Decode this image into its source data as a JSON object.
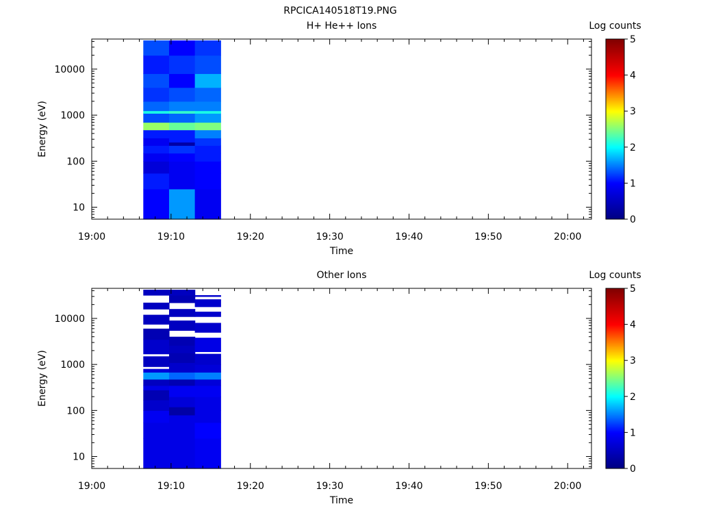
{
  "figure_title": "RPCICA140518T19.PNG",
  "colorbar_ticks": [
    "0",
    "1",
    "2",
    "3",
    "4",
    "5"
  ],
  "colors": {
    "axes": "#000000",
    "background": "#ffffff",
    "colormap": [
      "#000080",
      "#0000ff",
      "#00ffff",
      "#ffff00",
      "#ff0000",
      "#800000"
    ]
  },
  "chart_data": [
    {
      "type": "heatmap",
      "title": "H+ He++ Ions",
      "xlabel": "Time",
      "ylabel": "Energy (eV)",
      "colorbar_label": "Log counts",
      "xticks": [
        "19:00",
        "19:10",
        "19:20",
        "19:30",
        "19:40",
        "19:50",
        "20:00"
      ],
      "yticks": [
        "10",
        "100",
        "1000",
        "10000"
      ],
      "yscale": "log",
      "ylim_eV": [
        5.5,
        45000
      ],
      "xlim": [
        "19:00",
        "20:03"
      ],
      "zlim": [
        0,
        5
      ],
      "grid": false,
      "columns": [
        {
          "start": "19:06:30",
          "end": "19:09:45",
          "bins": [
            {
              "emin": 5.5,
              "emax": 25,
              "value": 1.0
            },
            {
              "emin": 25,
              "emax": 55,
              "value": 1.1
            },
            {
              "emin": 55,
              "emax": 100,
              "value": 0.7
            },
            {
              "emin": 100,
              "emax": 150,
              "value": 0.9
            },
            {
              "emin": 150,
              "emax": 220,
              "value": 1.1
            },
            {
              "emin": 220,
              "emax": 320,
              "value": 0.9
            },
            {
              "emin": 320,
              "emax": 480,
              "value": 1.1
            },
            {
              "emin": 480,
              "emax": 700,
              "value": 2.6
            },
            {
              "emin": 700,
              "emax": 1100,
              "value": 1.3
            },
            {
              "emin": 1100,
              "emax": 1250,
              "value": 2.1
            },
            {
              "emin": 1250,
              "emax": 2000,
              "value": 1.4
            },
            {
              "emin": 2000,
              "emax": 4000,
              "value": 1.2
            },
            {
              "emin": 4000,
              "emax": 8000,
              "value": 1.3
            },
            {
              "emin": 8000,
              "emax": 20000,
              "value": 1.1
            },
            {
              "emin": 20000,
              "emax": 42000,
              "value": 1.3
            }
          ]
        },
        {
          "start": "19:09:45",
          "end": "19:13:00",
          "bins": [
            {
              "emin": 5.5,
              "emax": 25,
              "value": 1.6
            },
            {
              "emin": 25,
              "emax": 55,
              "value": 0.9
            },
            {
              "emin": 55,
              "emax": 100,
              "value": 0.9
            },
            {
              "emin": 100,
              "emax": 150,
              "value": 1.0
            },
            {
              "emin": 150,
              "emax": 220,
              "value": 1.2
            },
            {
              "emin": 220,
              "emax": 260,
              "value": 0.3
            },
            {
              "emin": 260,
              "emax": 480,
              "value": 1.1
            },
            {
              "emin": 480,
              "emax": 700,
              "value": 2.4
            },
            {
              "emin": 700,
              "emax": 1100,
              "value": 1.4
            },
            {
              "emin": 1100,
              "emax": 1250,
              "value": 2.2
            },
            {
              "emin": 1250,
              "emax": 2000,
              "value": 1.5
            },
            {
              "emin": 2000,
              "emax": 4000,
              "value": 1.3
            },
            {
              "emin": 4000,
              "emax": 8000,
              "value": 1.0
            },
            {
              "emin": 8000,
              "emax": 20000,
              "value": 1.2
            },
            {
              "emin": 20000,
              "emax": 42000,
              "value": 1.0
            }
          ]
        },
        {
          "start": "19:13:00",
          "end": "19:16:15",
          "bins": [
            {
              "emin": 5.5,
              "emax": 25,
              "value": 0.9
            },
            {
              "emin": 25,
              "emax": 55,
              "value": 1.0
            },
            {
              "emin": 55,
              "emax": 100,
              "value": 1.0
            },
            {
              "emin": 100,
              "emax": 150,
              "value": 1.1
            },
            {
              "emin": 150,
              "emax": 220,
              "value": 1.1
            },
            {
              "emin": 220,
              "emax": 320,
              "value": 1.2
            },
            {
              "emin": 320,
              "emax": 480,
              "value": 1.5
            },
            {
              "emin": 480,
              "emax": 700,
              "value": 2.5
            },
            {
              "emin": 700,
              "emax": 1100,
              "value": 1.6
            },
            {
              "emin": 1100,
              "emax": 1250,
              "value": 2.1
            },
            {
              "emin": 1250,
              "emax": 2000,
              "value": 1.5
            },
            {
              "emin": 2000,
              "emax": 4000,
              "value": 1.4
            },
            {
              "emin": 4000,
              "emax": 8000,
              "value": 1.7
            },
            {
              "emin": 8000,
              "emax": 20000,
              "value": 1.3
            },
            {
              "emin": 20000,
              "emax": 42000,
              "value": 1.2
            }
          ]
        }
      ]
    },
    {
      "type": "heatmap",
      "title": "Other Ions",
      "xlabel": "Time",
      "ylabel": "Energy (eV)",
      "colorbar_label": "Log counts",
      "xticks": [
        "19:00",
        "19:10",
        "19:20",
        "19:30",
        "19:40",
        "19:50",
        "20:00"
      ],
      "yticks": [
        "10",
        "100",
        "1000",
        "10000"
      ],
      "yscale": "log",
      "ylim_eV": [
        5.5,
        45000
      ],
      "xlim": [
        "19:00",
        "20:03"
      ],
      "zlim": [
        0,
        5
      ],
      "grid": false,
      "columns": [
        {
          "start": "19:06:30",
          "end": "19:09:45",
          "bins": [
            {
              "emin": 5.5,
              "emax": 25,
              "value": 0.8
            },
            {
              "emin": 25,
              "emax": 55,
              "value": 0.8
            },
            {
              "emin": 55,
              "emax": 100,
              "value": 0.9
            },
            {
              "emin": 100,
              "emax": 170,
              "value": 0.6
            },
            {
              "emin": 170,
              "emax": 280,
              "value": 0.4
            },
            {
              "emin": 280,
              "emax": 350,
              "value": 0.8
            },
            {
              "emin": 350,
              "emax": 480,
              "value": 0.5
            },
            {
              "emin": 480,
              "emax": 680,
              "value": 1.6
            },
            {
              "emin": 680,
              "emax": 800,
              "value": 0.7
            },
            {
              "emin": 800,
              "emax": 900,
              "value": null
            },
            {
              "emin": 900,
              "emax": 1500,
              "value": 0.5
            },
            {
              "emin": 1500,
              "emax": 1700,
              "value": null
            },
            {
              "emin": 1700,
              "emax": 3500,
              "value": 0.6
            },
            {
              "emin": 3500,
              "emax": 6000,
              "value": 0.4
            },
            {
              "emin": 6000,
              "emax": 7500,
              "value": null
            },
            {
              "emin": 7500,
              "emax": 12000,
              "value": 0.5
            },
            {
              "emin": 12000,
              "emax": 16000,
              "value": null
            },
            {
              "emin": 16000,
              "emax": 22000,
              "value": 0.5
            },
            {
              "emin": 22000,
              "emax": 32000,
              "value": null
            },
            {
              "emin": 32000,
              "emax": 42000,
              "value": 0.5
            }
          ]
        },
        {
          "start": "19:09:45",
          "end": "19:13:00",
          "bins": [
            {
              "emin": 5.5,
              "emax": 25,
              "value": 0.8
            },
            {
              "emin": 25,
              "emax": 55,
              "value": 0.8
            },
            {
              "emin": 55,
              "emax": 80,
              "value": 0.8
            },
            {
              "emin": 80,
              "emax": 120,
              "value": 0.3
            },
            {
              "emin": 120,
              "emax": 200,
              "value": 0.7
            },
            {
              "emin": 200,
              "emax": 350,
              "value": 0.9
            },
            {
              "emin": 350,
              "emax": 480,
              "value": 0.4
            },
            {
              "emin": 480,
              "emax": 680,
              "value": 1.4
            },
            {
              "emin": 680,
              "emax": 1100,
              "value": 0.6
            },
            {
              "emin": 1100,
              "emax": 1800,
              "value": 0.4
            },
            {
              "emin": 1800,
              "emax": 2600,
              "value": 0.5
            },
            {
              "emin": 2600,
              "emax": 4000,
              "value": 0.4
            },
            {
              "emin": 4000,
              "emax": 5500,
              "value": null
            },
            {
              "emin": 5500,
              "emax": 9000,
              "value": 0.5
            },
            {
              "emin": 9000,
              "emax": 11000,
              "value": null
            },
            {
              "emin": 11000,
              "emax": 16000,
              "value": 0.5
            },
            {
              "emin": 16000,
              "emax": 22000,
              "value": null
            },
            {
              "emin": 22000,
              "emax": 32000,
              "value": 0.4
            },
            {
              "emin": 32000,
              "emax": 42000,
              "value": 0.5
            }
          ]
        },
        {
          "start": "19:13:00",
          "end": "19:16:15",
          "bins": [
            {
              "emin": 5.5,
              "emax": 25,
              "value": 0.9
            },
            {
              "emin": 25,
              "emax": 55,
              "value": 1.0
            },
            {
              "emin": 55,
              "emax": 100,
              "value": 0.8
            },
            {
              "emin": 100,
              "emax": 200,
              "value": 0.8
            },
            {
              "emin": 200,
              "emax": 350,
              "value": 0.9
            },
            {
              "emin": 350,
              "emax": 480,
              "value": 0.7
            },
            {
              "emin": 480,
              "emax": 680,
              "value": 1.5
            },
            {
              "emin": 680,
              "emax": 1000,
              "value": 0.7
            },
            {
              "emin": 1000,
              "emax": 1700,
              "value": 0.6
            },
            {
              "emin": 1700,
              "emax": 1900,
              "value": null
            },
            {
              "emin": 1900,
              "emax": 3800,
              "value": 0.8
            },
            {
              "emin": 3800,
              "emax": 5000,
              "value": null
            },
            {
              "emin": 5000,
              "emax": 8000,
              "value": 0.6
            },
            {
              "emin": 8000,
              "emax": 11000,
              "value": null
            },
            {
              "emin": 11000,
              "emax": 14000,
              "value": 0.6
            },
            {
              "emin": 14000,
              "emax": 18000,
              "value": null
            },
            {
              "emin": 18000,
              "emax": 26000,
              "value": 0.6
            },
            {
              "emin": 26000,
              "emax": 30000,
              "value": null
            },
            {
              "emin": 30000,
              "emax": 32000,
              "value": 0.6
            }
          ]
        }
      ]
    }
  ]
}
